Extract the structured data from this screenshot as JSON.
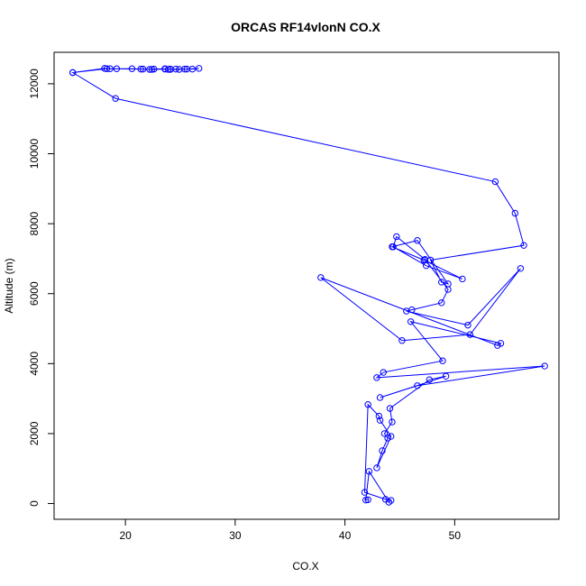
{
  "chart_data": {
    "type": "line",
    "title": "ORCAS RF14vlonN CO.X",
    "xlabel": "CO.X",
    "ylabel": "Altitude (m)",
    "xlim": [
      13.5,
      59.5
    ],
    "ylim": [
      -450,
      12900
    ],
    "xticks": [
      20,
      30,
      40,
      50
    ],
    "yticks": [
      0,
      2000,
      4000,
      6000,
      8000,
      10000,
      12000
    ],
    "grid": false,
    "legend": "none",
    "series_color": "#0000ff",
    "marker": "open-circle",
    "series": [
      {
        "x": [
          15.2,
          18.1,
          18.6,
          19.2,
          20.6,
          21.6,
          22.2,
          22.6,
          23.6,
          24.1,
          24.6,
          25.4,
          26.1,
          26.7,
          25.6,
          24.9,
          24.1,
          23.9,
          23.6,
          22.4,
          21.4,
          18.3,
          15.2,
          19.1,
          53.7,
          55.5,
          56.3,
          47.8,
          48.8,
          49.4,
          46.6,
          44.3,
          47.2,
          50.7,
          47.4,
          44.4,
          44.7,
          47.3,
          49.4,
          48.8,
          46.1,
          45.6,
          51.2,
          56.0,
          51.4,
          45.2,
          37.8,
          53.9,
          54.2,
          46.0,
          48.9,
          43.5,
          42.9,
          58.2,
          46.6,
          43.2,
          49.2,
          47.7,
          44.1,
          44.3,
          43.6,
          43.9,
          43.4,
          42.9,
          44.2,
          43.2,
          43.1,
          42.1,
          41.8,
          43.7,
          44.2,
          44.0,
          42.2,
          41.9,
          42.1
        ],
        "y": [
          12320,
          12440,
          12430,
          12430,
          12430,
          12420,
          12410,
          12420,
          12430,
          12420,
          12420,
          12420,
          12420,
          12440,
          12420,
          12410,
          12410,
          12410,
          12420,
          12410,
          12420,
          12430,
          12320,
          11580,
          9200,
          8300,
          7380,
          6960,
          6330,
          6280,
          7520,
          7340,
          6960,
          6420,
          6800,
          7340,
          7630,
          6980,
          6120,
          5740,
          5540,
          5500,
          5100,
          6720,
          4830,
          4660,
          6460,
          4520,
          4580,
          5200,
          4080,
          3750,
          3600,
          3930,
          3370,
          3030,
          3640,
          3540,
          2720,
          2330,
          2000,
          1870,
          1510,
          1020,
          1920,
          2380,
          2500,
          2830,
          320,
          120,
          90,
          40,
          920,
          100,
          110
        ]
      }
    ]
  }
}
